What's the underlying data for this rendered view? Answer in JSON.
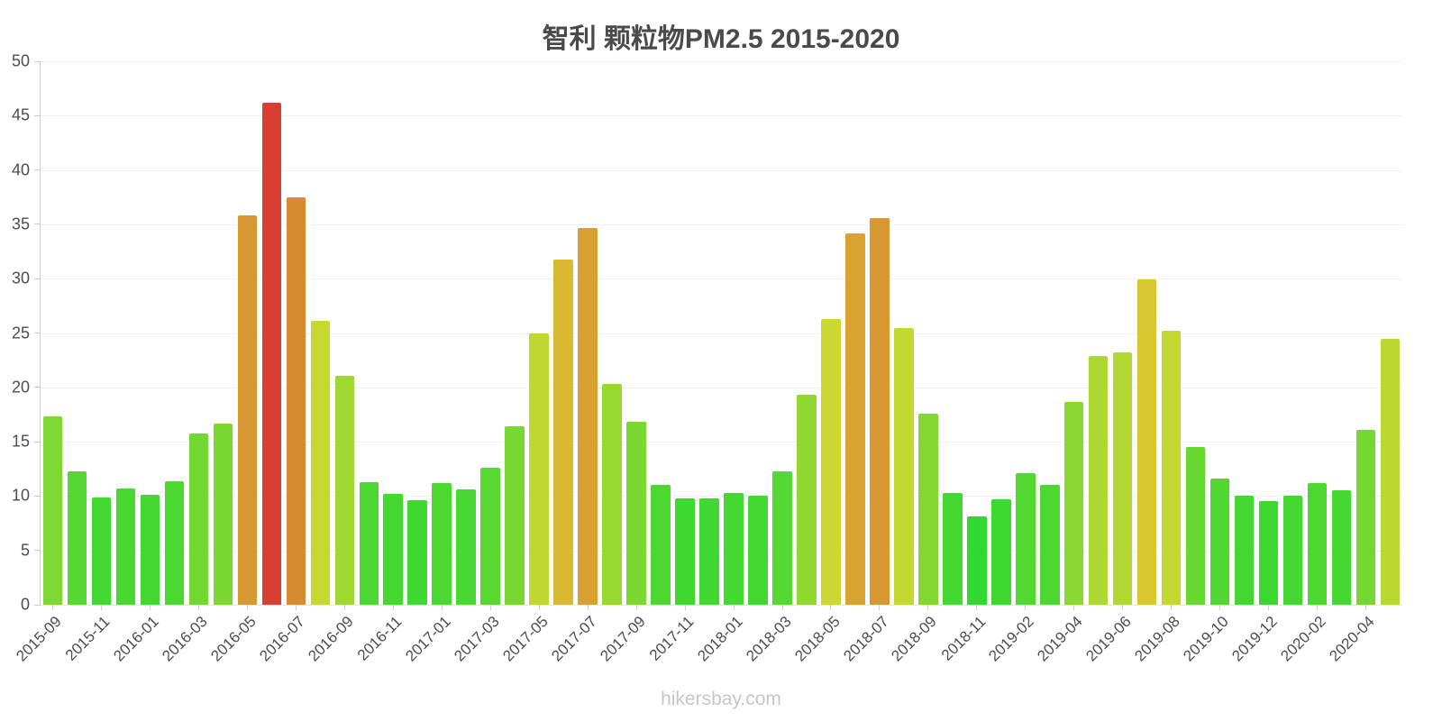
{
  "chart_data": {
    "type": "bar",
    "title": "智利 颗粒物PM2.5 2015-2020",
    "footer": "hikersbay.com",
    "xlabel": "",
    "ylabel": "",
    "ylim": [
      0,
      50
    ],
    "ytick_step": 5,
    "grid": true,
    "legend": false,
    "x_label_every": 2,
    "x_label_rotation_deg": -45,
    "categories": [
      "2015-09",
      "2015-10",
      "2015-11",
      "2015-12",
      "2016-01",
      "2016-02",
      "2016-03",
      "2016-04",
      "2016-05",
      "2016-06",
      "2016-07",
      "2016-08",
      "2016-09",
      "2016-10",
      "2016-11",
      "2016-12",
      "2017-01",
      "2017-02",
      "2017-03",
      "2017-04",
      "2017-05",
      "2017-06",
      "2017-07",
      "2017-08",
      "2017-09",
      "2017-10",
      "2017-11",
      "2017-12",
      "2018-01",
      "2018-02",
      "2018-03",
      "2018-04",
      "2018-05",
      "2018-06",
      "2018-07",
      "2018-08",
      "2018-09",
      "2018-10",
      "2018-11",
      "2018-12",
      "2019-02",
      "2019-03",
      "2019-04",
      "2019-05",
      "2019-06",
      "2019-07",
      "2019-08",
      "2019-09",
      "2019-10",
      "2019-11",
      "2019-12",
      "2020-01",
      "2020-02",
      "2020-03",
      "2020-04",
      "2020-05"
    ],
    "values": [
      17.3,
      12.3,
      9.9,
      10.7,
      10.1,
      11.4,
      15.8,
      16.7,
      35.8,
      46.2,
      37.5,
      26.1,
      21.1,
      11.3,
      10.2,
      9.6,
      11.2,
      10.6,
      12.6,
      16.4,
      25.0,
      31.8,
      34.7,
      20.3,
      16.8,
      11.0,
      9.8,
      9.8,
      10.3,
      10.0,
      12.3,
      19.3,
      26.3,
      34.2,
      35.6,
      25.5,
      17.6,
      10.3,
      8.1,
      9.7,
      12.1,
      11.0,
      18.7,
      22.9,
      23.2,
      29.9,
      25.2,
      14.5,
      11.6,
      10.0,
      9.5,
      10.0,
      11.2,
      10.5,
      16.1,
      24.5
    ],
    "color_scale": {
      "description": "bar hue mapped from value: green (low) to yellow, orange, red (high)",
      "hue_min_value": 8,
      "hue_max_value": 48,
      "hue_at_min": 120,
      "hue_at_max": 0,
      "saturation_pct": 68,
      "lightness_pct": 52,
      "sample_colors": {
        "low_green": "#3bd53b",
        "mid_yellow": "#cfc434",
        "high_orange": "#d89a32",
        "max_red": "#d8402f"
      }
    },
    "text_colors": {
      "title": "#4a4a4a",
      "axis_labels": "#4d4d4d",
      "watermark": "#c6c6c6"
    }
  }
}
